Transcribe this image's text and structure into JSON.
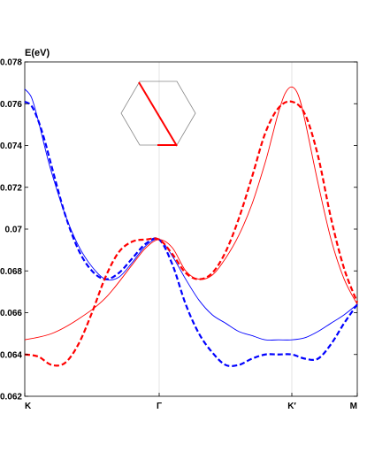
{
  "chart_data": {
    "type": "line",
    "ylabel": "E(eV)",
    "xlabel": "",
    "ylim": [
      0.062,
      0.078
    ],
    "xlim": [
      0,
      3
    ],
    "grid": "vertical lines at high-symmetry points",
    "x_ticks": [
      {
        "x": 0,
        "label": "K"
      },
      {
        "x": 1,
        "label": "Γ"
      },
      {
        "x": 2,
        "label": "K′"
      },
      {
        "x": 2.5,
        "label": "M"
      }
    ],
    "y_ticks": [
      {
        "y": 0.062,
        "label": "0.062"
      },
      {
        "y": 0.064,
        "label": "0.064"
      },
      {
        "y": 0.066,
        "label": "0.066"
      },
      {
        "y": 0.068,
        "label": "0.068"
      },
      {
        "y": 0.07,
        "label": "0.07"
      },
      {
        "y": 0.072,
        "label": "0.072"
      },
      {
        "y": 0.074,
        "label": "0.074"
      },
      {
        "y": 0.076,
        "label": "0.076"
      },
      {
        "y": 0.078,
        "label": "0.078"
      }
    ],
    "series": [
      {
        "color": "#0000ff",
        "style": "solid",
        "x": [
          0,
          0.05,
          0.1,
          0.15,
          0.2,
          0.3,
          0.4,
          0.5,
          0.6,
          0.7,
          0.8,
          0.9,
          1.0,
          1.1,
          1.2,
          1.3,
          1.4,
          1.5,
          1.6,
          1.7,
          1.8,
          1.9,
          2.0,
          2.1,
          2.2,
          2.3,
          2.4,
          2.5
        ],
        "y": [
          0.0767,
          0.0763,
          0.0752,
          0.0739,
          0.0727,
          0.0707,
          0.0692,
          0.0682,
          0.0676,
          0.0677,
          0.0684,
          0.0692,
          0.0695,
          0.0687,
          0.0676,
          0.0666,
          0.0659,
          0.0655,
          0.0651,
          0.0649,
          0.0647,
          0.0647,
          0.0647,
          0.0648,
          0.0651,
          0.0655,
          0.0659,
          0.0664
        ]
      },
      {
        "color": "#0000ff",
        "style": "dashed",
        "x": [
          0,
          0.05,
          0.1,
          0.15,
          0.2,
          0.3,
          0.4,
          0.5,
          0.6,
          0.7,
          0.8,
          0.9,
          1.0,
          1.1,
          1.2,
          1.3,
          1.4,
          1.5,
          1.6,
          1.7,
          1.8,
          1.9,
          2.0,
          2.1,
          2.2,
          2.3,
          2.4,
          2.5
        ],
        "y": [
          0.0761,
          0.0759,
          0.0752,
          0.0742,
          0.073,
          0.0707,
          0.069,
          0.068,
          0.0676,
          0.0679,
          0.0686,
          0.0693,
          0.0695,
          0.0683,
          0.0664,
          0.065,
          0.0641,
          0.0635,
          0.0635,
          0.0638,
          0.064,
          0.064,
          0.064,
          0.0638,
          0.0638,
          0.0645,
          0.0655,
          0.0664
        ]
      },
      {
        "color": "#ff0000",
        "style": "solid",
        "x": [
          0,
          0.2,
          0.4,
          0.6,
          0.8,
          0.9,
          1.0,
          1.1,
          1.2,
          1.3,
          1.4,
          1.5,
          1.6,
          1.7,
          1.8,
          1.85,
          1.9,
          1.95,
          2.0,
          2.05,
          2.1,
          2.2,
          2.3,
          2.4,
          2.5
        ],
        "y": [
          0.0647,
          0.065,
          0.0657,
          0.0667,
          0.0683,
          0.0691,
          0.0695,
          0.0691,
          0.068,
          0.0676,
          0.0678,
          0.0686,
          0.0697,
          0.0712,
          0.0732,
          0.0744,
          0.0756,
          0.0765,
          0.0768,
          0.0764,
          0.0752,
          0.0722,
          0.0695,
          0.0676,
          0.0664
        ]
      },
      {
        "color": "#ff0000",
        "style": "dashed",
        "x": [
          0,
          0.1,
          0.2,
          0.3,
          0.4,
          0.5,
          0.6,
          0.7,
          0.8,
          0.9,
          1.0,
          1.1,
          1.2,
          1.3,
          1.4,
          1.5,
          1.6,
          1.7,
          1.8,
          1.9,
          2.0,
          2.1,
          2.2,
          2.3,
          2.4,
          2.5
        ],
        "y": [
          0.064,
          0.0639,
          0.0635,
          0.0636,
          0.0645,
          0.066,
          0.0677,
          0.0689,
          0.0694,
          0.0695,
          0.0695,
          0.0688,
          0.0679,
          0.0676,
          0.0679,
          0.0689,
          0.0705,
          0.0725,
          0.0746,
          0.0758,
          0.0761,
          0.0755,
          0.0735,
          0.0705,
          0.0681,
          0.0665
        ]
      }
    ]
  },
  "colors": {
    "blue": "#0000ff",
    "red": "#ff0000",
    "grid": "#dddddd",
    "inset_outline": "#888888"
  }
}
